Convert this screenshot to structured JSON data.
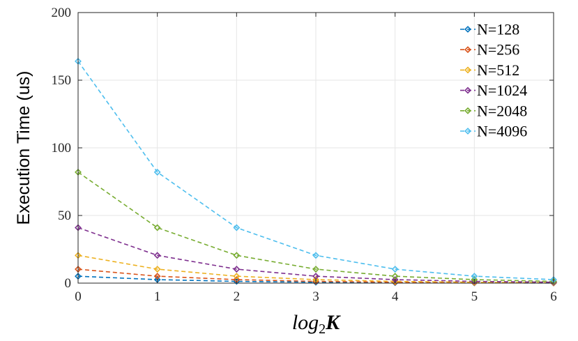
{
  "chart_data": {
    "type": "line",
    "title": "",
    "xlabel": "log",
    "xlabel_sub": "2",
    "xlabel_var": "K",
    "ylabel": "Execution Time (us)",
    "x": [
      0,
      1,
      2,
      3,
      4,
      5,
      6
    ],
    "xlim": [
      0,
      6
    ],
    "ylim": [
      0,
      200
    ],
    "xticks": [
      0,
      1,
      2,
      3,
      4,
      5,
      6
    ],
    "yticks": [
      0,
      50,
      100,
      150,
      200
    ],
    "xtick_labels": [
      "0",
      "1",
      "2",
      "3",
      "4",
      "5",
      "6"
    ],
    "ytick_labels": [
      "0",
      "50",
      "100",
      "150",
      "200"
    ],
    "grid": true,
    "legend_position": "top-right",
    "marker": "diamond",
    "line_style": "dashed",
    "series": [
      {
        "name": "N=128",
        "color": "#0072BD",
        "values": [
          5.1,
          2.6,
          1.3,
          0.65,
          0.33,
          0.17,
          0.09
        ]
      },
      {
        "name": "N=256",
        "color": "#D95319",
        "values": [
          10.3,
          5.1,
          2.6,
          1.3,
          0.65,
          0.33,
          0.17
        ]
      },
      {
        "name": "N=512",
        "color": "#EDB120",
        "values": [
          20.5,
          10.3,
          5.1,
          2.6,
          1.3,
          0.65,
          0.33
        ]
      },
      {
        "name": "N=1024",
        "color": "#7E2F8E",
        "values": [
          41,
          20.5,
          10.3,
          5.1,
          2.6,
          1.3,
          0.65
        ]
      },
      {
        "name": "N=2048",
        "color": "#77AC30",
        "values": [
          82,
          41,
          20.5,
          10.3,
          5.1,
          2.6,
          1.3
        ]
      },
      {
        "name": "N=4096",
        "color": "#4DBEEE",
        "values": [
          164,
          82,
          41,
          20.5,
          10.3,
          5.1,
          2.6
        ]
      }
    ]
  }
}
